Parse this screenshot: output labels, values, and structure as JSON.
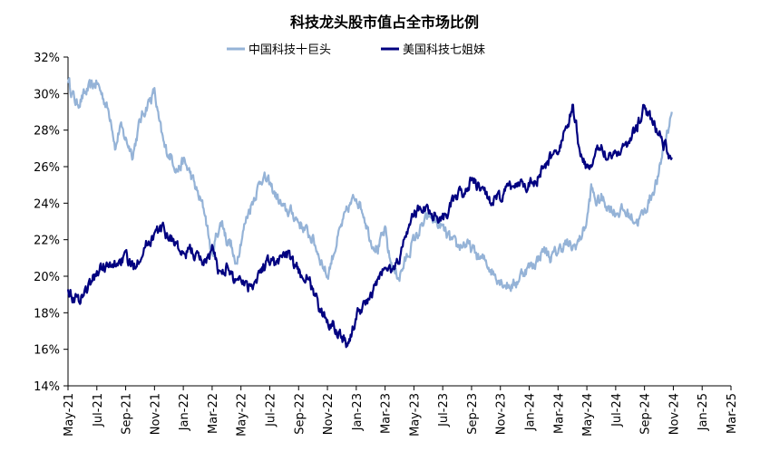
{
  "chart_data": {
    "type": "line",
    "title": "科技龙头股市值占全市场比例",
    "ylabel_format": "%",
    "ylim": [
      14,
      32
    ],
    "yticks": [
      14,
      16,
      18,
      20,
      22,
      24,
      26,
      28,
      30,
      32
    ],
    "ytick_labels": [
      "14%",
      "16%",
      "18%",
      "20%",
      "22%",
      "24%",
      "26%",
      "28%",
      "30%",
      "32%"
    ],
    "xlim": [
      0,
      46
    ],
    "xtick_positions": [
      0,
      2,
      4,
      6,
      8,
      10,
      12,
      14,
      16,
      18,
      20,
      22,
      24,
      26,
      28,
      30,
      32,
      34,
      36,
      38,
      40,
      42,
      44,
      46
    ],
    "xtick_labels": [
      "May-21",
      "Jul-21",
      "Sep-21",
      "Nov-21",
      "Jan-22",
      "Mar-22",
      "May-22",
      "Jul-22",
      "Sep-22",
      "Nov-22",
      "Jan-23",
      "Mar-23",
      "May-23",
      "Jul-23",
      "Sep-23",
      "Nov-23",
      "Jan-24",
      "Mar-24",
      "May-24",
      "Jul-24",
      "Sep-24",
      "Nov-24",
      "Jan-25",
      "Mar-25"
    ],
    "series": [
      {
        "name": "中国科技十巨头",
        "color": "#95b3d7",
        "points": [
          [
            0,
            30.8
          ],
          [
            0.3,
            30.0
          ],
          [
            0.6,
            29.4
          ],
          [
            1.0,
            29.8
          ],
          [
            1.5,
            30.3
          ],
          [
            2.0,
            30.6
          ],
          [
            2.5,
            29.7
          ],
          [
            3.0,
            28.6
          ],
          [
            3.3,
            27.0
          ],
          [
            3.6,
            28.2
          ],
          [
            4.0,
            27.5
          ],
          [
            4.5,
            26.7
          ],
          [
            5.0,
            28.5
          ],
          [
            5.5,
            29.4
          ],
          [
            6.0,
            30.1
          ],
          [
            6.3,
            28.5
          ],
          [
            6.7,
            27.0
          ],
          [
            7.2,
            26.5
          ],
          [
            7.6,
            25.8
          ],
          [
            8.0,
            26.3
          ],
          [
            8.5,
            25.6
          ],
          [
            9.0,
            24.5
          ],
          [
            9.5,
            23.5
          ],
          [
            10.0,
            21.0
          ],
          [
            10.3,
            22.3
          ],
          [
            10.7,
            23.0
          ],
          [
            11.0,
            22.0
          ],
          [
            11.3,
            21.8
          ],
          [
            11.6,
            20.5
          ],
          [
            12.0,
            22.0
          ],
          [
            12.5,
            23.5
          ],
          [
            13.0,
            24.5
          ],
          [
            13.5,
            25.5
          ],
          [
            14.0,
            25.0
          ],
          [
            14.5,
            24.3
          ],
          [
            15.0,
            23.6
          ],
          [
            15.5,
            23.5
          ],
          [
            16.0,
            23.0
          ],
          [
            16.5,
            22.5
          ],
          [
            17.0,
            22.0
          ],
          [
            17.5,
            21.0
          ],
          [
            18.0,
            20.0
          ],
          [
            18.5,
            21.5
          ],
          [
            19.0,
            22.8
          ],
          [
            19.5,
            23.8
          ],
          [
            20.0,
            24.4
          ],
          [
            20.5,
            23.5
          ],
          [
            21.0,
            22.0
          ],
          [
            21.5,
            21.5
          ],
          [
            22.0,
            22.5
          ],
          [
            22.3,
            21.0
          ],
          [
            22.7,
            20.2
          ],
          [
            23.0,
            20.0
          ],
          [
            23.5,
            21.0
          ],
          [
            24.0,
            22.0
          ],
          [
            24.5,
            22.6
          ],
          [
            25.0,
            23.3
          ],
          [
            25.5,
            23.0
          ],
          [
            26.0,
            22.6
          ],
          [
            26.5,
            22.0
          ],
          [
            27.0,
            21.6
          ],
          [
            27.5,
            21.8
          ],
          [
            28.0,
            21.5
          ],
          [
            28.5,
            21.0
          ],
          [
            29.0,
            20.8
          ],
          [
            29.5,
            20.2
          ],
          [
            30.0,
            19.8
          ],
          [
            30.5,
            19.5
          ],
          [
            31.0,
            19.5
          ],
          [
            31.5,
            20.2
          ],
          [
            32.0,
            20.5
          ],
          [
            32.5,
            20.8
          ],
          [
            33.0,
            21.5
          ],
          [
            33.5,
            21.0
          ],
          [
            34.0,
            21.4
          ],
          [
            34.5,
            21.8
          ],
          [
            35.0,
            21.5
          ],
          [
            35.5,
            22.0
          ],
          [
            36.0,
            23.0
          ],
          [
            36.3,
            24.8
          ],
          [
            36.7,
            24.0
          ],
          [
            37.0,
            24.3
          ],
          [
            37.5,
            23.8
          ],
          [
            38.0,
            23.5
          ],
          [
            38.5,
            23.6
          ],
          [
            39.0,
            23.3
          ],
          [
            39.5,
            23.0
          ],
          [
            40.0,
            23.5
          ],
          [
            40.5,
            24.5
          ],
          [
            41.0,
            25.5
          ],
          [
            41.3,
            27.0
          ],
          [
            41.6,
            28.0
          ],
          [
            41.9,
            29.0
          ]
        ]
      },
      {
        "name": "美国科技七姐妹",
        "color": "#000080",
        "points": [
          [
            0,
            19.5
          ],
          [
            0.3,
            18.9
          ],
          [
            0.7,
            18.7
          ],
          [
            1.0,
            19.0
          ],
          [
            1.5,
            19.5
          ],
          [
            2.0,
            20.2
          ],
          [
            2.5,
            20.6
          ],
          [
            3.0,
            20.4
          ],
          [
            3.5,
            20.8
          ],
          [
            4.0,
            21.0
          ],
          [
            4.5,
            20.5
          ],
          [
            5.0,
            21.2
          ],
          [
            5.5,
            21.8
          ],
          [
            6.0,
            22.3
          ],
          [
            6.5,
            22.6
          ],
          [
            7.0,
            22.2
          ],
          [
            7.5,
            21.8
          ],
          [
            8.0,
            21.0
          ],
          [
            8.5,
            21.5
          ],
          [
            9.0,
            21.0
          ],
          [
            9.5,
            20.8
          ],
          [
            10.0,
            21.5
          ],
          [
            10.5,
            20.2
          ],
          [
            11.0,
            20.5
          ],
          [
            11.5,
            19.8
          ],
          [
            12.0,
            20.0
          ],
          [
            12.5,
            19.5
          ],
          [
            13.0,
            19.8
          ],
          [
            13.5,
            20.5
          ],
          [
            14.0,
            21.0
          ],
          [
            14.5,
            20.6
          ],
          [
            15.0,
            21.4
          ],
          [
            15.5,
            20.8
          ],
          [
            16.0,
            20.2
          ],
          [
            16.5,
            20.0
          ],
          [
            17.0,
            19.3
          ],
          [
            17.5,
            18.0
          ],
          [
            18.0,
            17.6
          ],
          [
            18.5,
            17.3
          ],
          [
            19.0,
            16.8
          ],
          [
            19.3,
            16.3
          ],
          [
            19.7,
            16.8
          ],
          [
            20.0,
            17.8
          ],
          [
            20.5,
            18.5
          ],
          [
            21.0,
            18.8
          ],
          [
            21.5,
            19.8
          ],
          [
            22.0,
            20.5
          ],
          [
            22.5,
            20.3
          ],
          [
            23.0,
            21.0
          ],
          [
            23.5,
            22.5
          ],
          [
            24.0,
            23.4
          ],
          [
            24.5,
            23.8
          ],
          [
            25.0,
            23.6
          ],
          [
            25.5,
            23.4
          ],
          [
            26.0,
            23.2
          ],
          [
            26.5,
            23.8
          ],
          [
            27.0,
            24.3
          ],
          [
            27.5,
            24.6
          ],
          [
            28.0,
            25.3
          ],
          [
            28.5,
            24.8
          ],
          [
            29.0,
            24.5
          ],
          [
            29.5,
            24.0
          ],
          [
            30.0,
            24.3
          ],
          [
            30.5,
            24.8
          ],
          [
            31.0,
            25.0
          ],
          [
            31.5,
            25.2
          ],
          [
            32.0,
            25.0
          ],
          [
            32.5,
            25.3
          ],
          [
            33.0,
            25.8
          ],
          [
            33.5,
            26.5
          ],
          [
            34.0,
            27.0
          ],
          [
            34.5,
            27.8
          ],
          [
            35.0,
            29.2
          ],
          [
            35.3,
            28.0
          ],
          [
            35.6,
            26.5
          ],
          [
            36.0,
            26.0
          ],
          [
            36.5,
            26.3
          ],
          [
            37.0,
            27.2
          ],
          [
            37.5,
            26.6
          ],
          [
            38.0,
            26.8
          ],
          [
            38.5,
            27.0
          ],
          [
            39.0,
            27.5
          ],
          [
            39.5,
            28.2
          ],
          [
            40.0,
            29.3
          ],
          [
            40.5,
            28.5
          ],
          [
            41.0,
            27.8
          ],
          [
            41.5,
            27.0
          ],
          [
            41.9,
            26.5
          ]
        ]
      }
    ]
  }
}
